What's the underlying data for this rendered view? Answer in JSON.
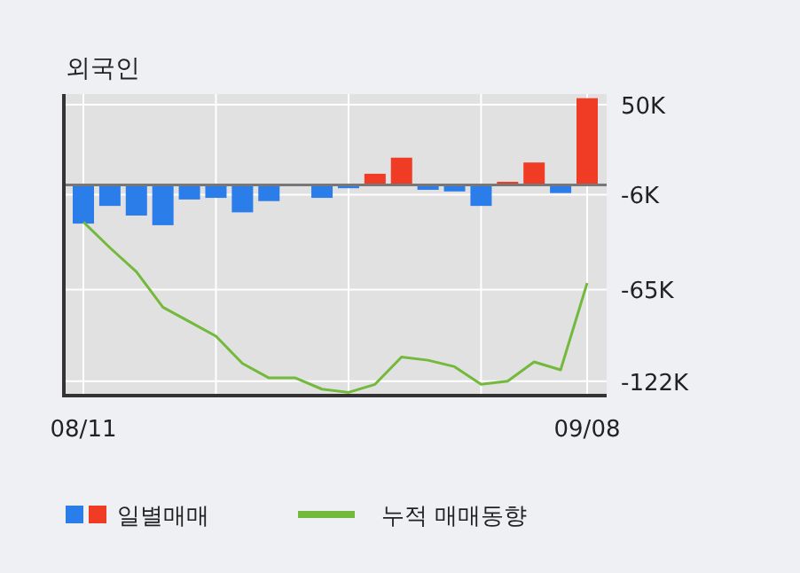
{
  "chart_data": {
    "type": "bar",
    "title": "외국인",
    "categories": [
      "08/11",
      null,
      null,
      null,
      null,
      null,
      null,
      null,
      null,
      null,
      null,
      null,
      null,
      null,
      null,
      null,
      null,
      null,
      null,
      "09/08"
    ],
    "series": [
      {
        "name": "일별매매",
        "colors": [
          "#2b7de9",
          "#2b7de9",
          "#2b7de9",
          "#2b7de9",
          "#2b7de9",
          "#2b7de9",
          "#2b7de9",
          "#2b7de9",
          "#2b7de9",
          "#2b7de9",
          "#2b7de9",
          "#f03c24",
          "#f03c24",
          "#2b7de9",
          "#2b7de9",
          "#2b7de9",
          "#f03c24",
          "#f03c24",
          "#2b7de9",
          "#f03c24"
        ],
        "values": [
          -24,
          -13,
          -19,
          -25,
          -9,
          -8,
          -17,
          -10,
          0,
          -8,
          -2,
          7,
          17,
          -3,
          -4,
          -13,
          2,
          14,
          -5,
          54
        ]
      },
      {
        "name": "누적 매매동향",
        "type": "line",
        "color": "#72b93c",
        "values": [
          -23,
          -39,
          -54,
          -76,
          -85,
          -94,
          -111,
          -120,
          -120,
          -127,
          -129,
          -124,
          -107,
          -109,
          -113,
          -124,
          -122,
          -110,
          -115,
          -61
        ]
      }
    ],
    "ylim": [
      -131,
      56.6
    ],
    "yticks": [
      {
        "value": 50,
        "label": "50K"
      },
      {
        "value": -6,
        "label": "-6K"
      },
      {
        "value": -65,
        "label": "-65K"
      },
      {
        "value": -122,
        "label": "-122K"
      }
    ],
    "grid": true,
    "legend": "bottom"
  }
}
